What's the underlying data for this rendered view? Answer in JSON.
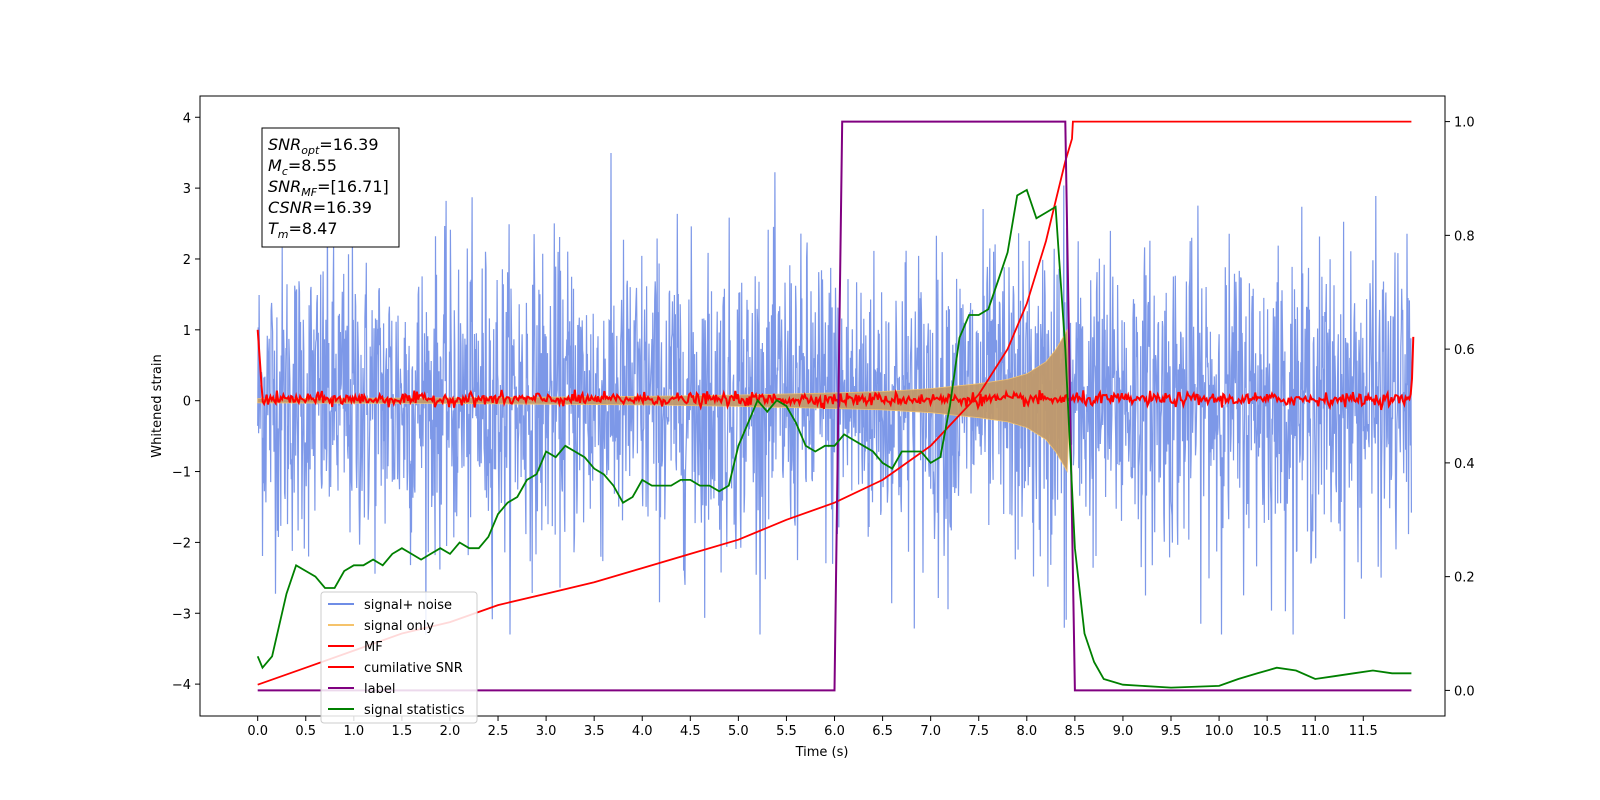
{
  "chart_data": {
    "type": "line",
    "title": "",
    "xlabel": "Time (s)",
    "ylabel": "Whitened strain",
    "xlim": [
      -0.6,
      12.35
    ],
    "ylim": [
      -4.45,
      4.3
    ],
    "y2lim": [
      -0.045,
      1.045
    ],
    "x_ticks": [
      0.0,
      0.5,
      1.0,
      1.5,
      2.0,
      2.5,
      3.0,
      3.5,
      4.0,
      4.5,
      5.0,
      5.5,
      6.0,
      6.5,
      7.0,
      7.5,
      8.0,
      8.5,
      9.0,
      9.5,
      10.0,
      10.5,
      11.0,
      11.5
    ],
    "x_tick_labels": [
      "0.0",
      "0.5",
      "1.0",
      "1.5",
      "2.0",
      "2.5",
      "3.0",
      "3.5",
      "4.0",
      "4.5",
      "5.0",
      "5.5",
      "6.0",
      "6.5",
      "7.0",
      "7.5",
      "8.0",
      "8.5",
      "9.0",
      "9.5",
      "10.0",
      "10.5",
      "11.0",
      "11.5"
    ],
    "y_ticks": [
      -4,
      -3,
      -2,
      -1,
      0,
      1,
      2,
      3,
      4
    ],
    "y_tick_labels": [
      "−4",
      "−3",
      "−2",
      "−1",
      "0",
      "1",
      "2",
      "3",
      "4"
    ],
    "y2_ticks": [
      0.0,
      0.2,
      0.4,
      0.6,
      0.8,
      1.0
    ],
    "y2_tick_labels": [
      "0.0",
      "0.2",
      "0.4",
      "0.6",
      "0.8",
      "1.0"
    ],
    "grid": false,
    "legend_position": "lower-left",
    "colors": {
      "noise": "#6f8de6",
      "signal": "#f5c36b",
      "signal_fill": "#c19a6b",
      "mf": "#ff0000",
      "csnr": "#ff0000",
      "label": "#800080",
      "stats": "#008000"
    },
    "series": [
      {
        "name": "signal+ noise",
        "axis": "left",
        "description_values": {
          "t_start": 0.0,
          "t_end": 12.0,
          "approx_envelope": [
            -3.3,
            3.9
          ]
        }
      },
      {
        "name": "signal only",
        "axis": "left",
        "x": [
          0.0,
          1.0,
          2.0,
          3.0,
          4.0,
          5.0,
          6.0,
          6.5,
          7.0,
          7.5,
          7.8,
          8.0,
          8.2,
          8.3,
          8.38,
          8.42,
          8.45
        ],
        "values": [
          0.03,
          0.035,
          0.04,
          0.05,
          0.06,
          0.08,
          0.11,
          0.13,
          0.17,
          0.24,
          0.3,
          0.38,
          0.55,
          0.72,
          0.9,
          1.0,
          0.0
        ]
      },
      {
        "name": "MF",
        "axis": "left",
        "x": [
          0.0,
          0.05,
          12.0,
          12.02
        ],
        "values": [
          1.0,
          0.02,
          0.02,
          0.9
        ]
      },
      {
        "name": "cumilative SNR",
        "axis": "right",
        "x": [
          0.0,
          0.5,
          1.0,
          1.5,
          2.0,
          2.5,
          3.0,
          3.5,
          4.0,
          4.5,
          5.0,
          5.5,
          6.0,
          6.5,
          7.0,
          7.5,
          7.8,
          8.0,
          8.2,
          8.3,
          8.4,
          8.47,
          8.48,
          12.0
        ],
        "values": [
          0.01,
          0.04,
          0.07,
          0.1,
          0.12,
          0.15,
          0.17,
          0.19,
          0.215,
          0.24,
          0.265,
          0.3,
          0.33,
          0.37,
          0.43,
          0.52,
          0.6,
          0.68,
          0.79,
          0.86,
          0.93,
          0.97,
          1.0,
          1.0
        ]
      },
      {
        "name": "label",
        "axis": "right",
        "x": [
          0.0,
          6.0,
          6.08,
          8.4,
          8.5,
          12.0
        ],
        "values": [
          0.0,
          0.0,
          1.0,
          1.0,
          0.0,
          0.0
        ]
      },
      {
        "name": "signal statistics",
        "axis": "right",
        "x": [
          0.0,
          0.05,
          0.15,
          0.3,
          0.4,
          0.5,
          0.6,
          0.7,
          0.8,
          0.9,
          1.0,
          1.1,
          1.2,
          1.3,
          1.4,
          1.5,
          1.6,
          1.7,
          1.8,
          1.9,
          2.0,
          2.1,
          2.2,
          2.3,
          2.4,
          2.5,
          2.6,
          2.7,
          2.8,
          2.9,
          3.0,
          3.1,
          3.2,
          3.3,
          3.4,
          3.5,
          3.6,
          3.7,
          3.8,
          3.9,
          4.0,
          4.1,
          4.2,
          4.3,
          4.4,
          4.5,
          4.6,
          4.7,
          4.8,
          4.9,
          5.0,
          5.1,
          5.2,
          5.3,
          5.4,
          5.5,
          5.6,
          5.7,
          5.8,
          5.9,
          6.0,
          6.1,
          6.2,
          6.3,
          6.4,
          6.5,
          6.6,
          6.7,
          6.8,
          6.9,
          7.0,
          7.1,
          7.2,
          7.3,
          7.4,
          7.5,
          7.6,
          7.7,
          7.8,
          7.9,
          8.0,
          8.1,
          8.2,
          8.3,
          8.4,
          8.5,
          8.6,
          8.7,
          8.8,
          9.0,
          9.5,
          10.0,
          10.2,
          10.4,
          10.6,
          10.8,
          11.0,
          11.2,
          11.4,
          11.6,
          11.8,
          12.0
        ],
        "values": [
          0.06,
          0.04,
          0.06,
          0.17,
          0.22,
          0.21,
          0.2,
          0.18,
          0.18,
          0.21,
          0.22,
          0.22,
          0.23,
          0.22,
          0.24,
          0.25,
          0.24,
          0.23,
          0.24,
          0.25,
          0.24,
          0.26,
          0.25,
          0.25,
          0.27,
          0.31,
          0.33,
          0.34,
          0.37,
          0.38,
          0.42,
          0.41,
          0.43,
          0.42,
          0.41,
          0.39,
          0.38,
          0.36,
          0.33,
          0.34,
          0.37,
          0.36,
          0.36,
          0.36,
          0.37,
          0.37,
          0.36,
          0.36,
          0.35,
          0.36,
          0.43,
          0.47,
          0.51,
          0.49,
          0.51,
          0.5,
          0.47,
          0.43,
          0.42,
          0.43,
          0.43,
          0.45,
          0.44,
          0.43,
          0.42,
          0.4,
          0.39,
          0.42,
          0.42,
          0.42,
          0.4,
          0.41,
          0.5,
          0.62,
          0.66,
          0.66,
          0.67,
          0.72,
          0.77,
          0.87,
          0.88,
          0.83,
          0.84,
          0.85,
          0.6,
          0.25,
          0.1,
          0.05,
          0.02,
          0.01,
          0.005,
          0.008,
          0.02,
          0.03,
          0.04,
          0.035,
          0.02,
          0.025,
          0.03,
          0.035,
          0.03,
          0.03
        ]
      }
    ],
    "legend": [
      "signal+ noise",
      "signal only",
      "MF",
      "cumilative SNR",
      "label",
      "signal statistics"
    ],
    "annotation": {
      "lines": [
        {
          "base": "SNR",
          "sub": "opt",
          "rest": "=16.39"
        },
        {
          "base": "M",
          "sub": "c",
          "rest": "=8.55"
        },
        {
          "base": "SNR",
          "sub": "MF",
          "rest": "=[16.71]"
        },
        {
          "base": "CSNR",
          "sub": "",
          "rest": "=16.39"
        },
        {
          "base": "T",
          "sub": "m",
          "rest": "=8.47"
        }
      ]
    }
  }
}
